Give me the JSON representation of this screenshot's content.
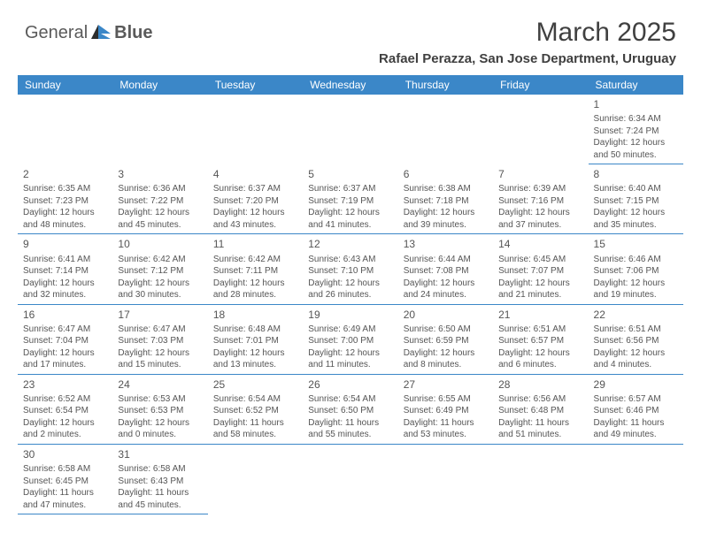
{
  "logo": {
    "text1": "General",
    "text2": "Blue"
  },
  "title": "March 2025",
  "location": "Rafael Perazza, San Jose Department, Uruguay",
  "weekdays": [
    "Sunday",
    "Monday",
    "Tuesday",
    "Wednesday",
    "Thursday",
    "Friday",
    "Saturday"
  ],
  "header_bg": "#3b87c8",
  "weeks": [
    [
      null,
      null,
      null,
      null,
      null,
      null,
      {
        "n": "1",
        "sr": "6:34 AM",
        "ss": "7:24 PM",
        "dl": "12 hours and 50 minutes."
      }
    ],
    [
      {
        "n": "2",
        "sr": "6:35 AM",
        "ss": "7:23 PM",
        "dl": "12 hours and 48 minutes."
      },
      {
        "n": "3",
        "sr": "6:36 AM",
        "ss": "7:22 PM",
        "dl": "12 hours and 45 minutes."
      },
      {
        "n": "4",
        "sr": "6:37 AM",
        "ss": "7:20 PM",
        "dl": "12 hours and 43 minutes."
      },
      {
        "n": "5",
        "sr": "6:37 AM",
        "ss": "7:19 PM",
        "dl": "12 hours and 41 minutes."
      },
      {
        "n": "6",
        "sr": "6:38 AM",
        "ss": "7:18 PM",
        "dl": "12 hours and 39 minutes."
      },
      {
        "n": "7",
        "sr": "6:39 AM",
        "ss": "7:16 PM",
        "dl": "12 hours and 37 minutes."
      },
      {
        "n": "8",
        "sr": "6:40 AM",
        "ss": "7:15 PM",
        "dl": "12 hours and 35 minutes."
      }
    ],
    [
      {
        "n": "9",
        "sr": "6:41 AM",
        "ss": "7:14 PM",
        "dl": "12 hours and 32 minutes."
      },
      {
        "n": "10",
        "sr": "6:42 AM",
        "ss": "7:12 PM",
        "dl": "12 hours and 30 minutes."
      },
      {
        "n": "11",
        "sr": "6:42 AM",
        "ss": "7:11 PM",
        "dl": "12 hours and 28 minutes."
      },
      {
        "n": "12",
        "sr": "6:43 AM",
        "ss": "7:10 PM",
        "dl": "12 hours and 26 minutes."
      },
      {
        "n": "13",
        "sr": "6:44 AM",
        "ss": "7:08 PM",
        "dl": "12 hours and 24 minutes."
      },
      {
        "n": "14",
        "sr": "6:45 AM",
        "ss": "7:07 PM",
        "dl": "12 hours and 21 minutes."
      },
      {
        "n": "15",
        "sr": "6:46 AM",
        "ss": "7:06 PM",
        "dl": "12 hours and 19 minutes."
      }
    ],
    [
      {
        "n": "16",
        "sr": "6:47 AM",
        "ss": "7:04 PM",
        "dl": "12 hours and 17 minutes."
      },
      {
        "n": "17",
        "sr": "6:47 AM",
        "ss": "7:03 PM",
        "dl": "12 hours and 15 minutes."
      },
      {
        "n": "18",
        "sr": "6:48 AM",
        "ss": "7:01 PM",
        "dl": "12 hours and 13 minutes."
      },
      {
        "n": "19",
        "sr": "6:49 AM",
        "ss": "7:00 PM",
        "dl": "12 hours and 11 minutes."
      },
      {
        "n": "20",
        "sr": "6:50 AM",
        "ss": "6:59 PM",
        "dl": "12 hours and 8 minutes."
      },
      {
        "n": "21",
        "sr": "6:51 AM",
        "ss": "6:57 PM",
        "dl": "12 hours and 6 minutes."
      },
      {
        "n": "22",
        "sr": "6:51 AM",
        "ss": "6:56 PM",
        "dl": "12 hours and 4 minutes."
      }
    ],
    [
      {
        "n": "23",
        "sr": "6:52 AM",
        "ss": "6:54 PM",
        "dl": "12 hours and 2 minutes."
      },
      {
        "n": "24",
        "sr": "6:53 AM",
        "ss": "6:53 PM",
        "dl": "12 hours and 0 minutes."
      },
      {
        "n": "25",
        "sr": "6:54 AM",
        "ss": "6:52 PM",
        "dl": "11 hours and 58 minutes."
      },
      {
        "n": "26",
        "sr": "6:54 AM",
        "ss": "6:50 PM",
        "dl": "11 hours and 55 minutes."
      },
      {
        "n": "27",
        "sr": "6:55 AM",
        "ss": "6:49 PM",
        "dl": "11 hours and 53 minutes."
      },
      {
        "n": "28",
        "sr": "6:56 AM",
        "ss": "6:48 PM",
        "dl": "11 hours and 51 minutes."
      },
      {
        "n": "29",
        "sr": "6:57 AM",
        "ss": "6:46 PM",
        "dl": "11 hours and 49 minutes."
      }
    ],
    [
      {
        "n": "30",
        "sr": "6:58 AM",
        "ss": "6:45 PM",
        "dl": "11 hours and 47 minutes."
      },
      {
        "n": "31",
        "sr": "6:58 AM",
        "ss": "6:43 PM",
        "dl": "11 hours and 45 minutes."
      },
      null,
      null,
      null,
      null,
      null
    ]
  ],
  "labels": {
    "sunrise": "Sunrise:",
    "sunset": "Sunset:",
    "daylight": "Daylight:"
  }
}
